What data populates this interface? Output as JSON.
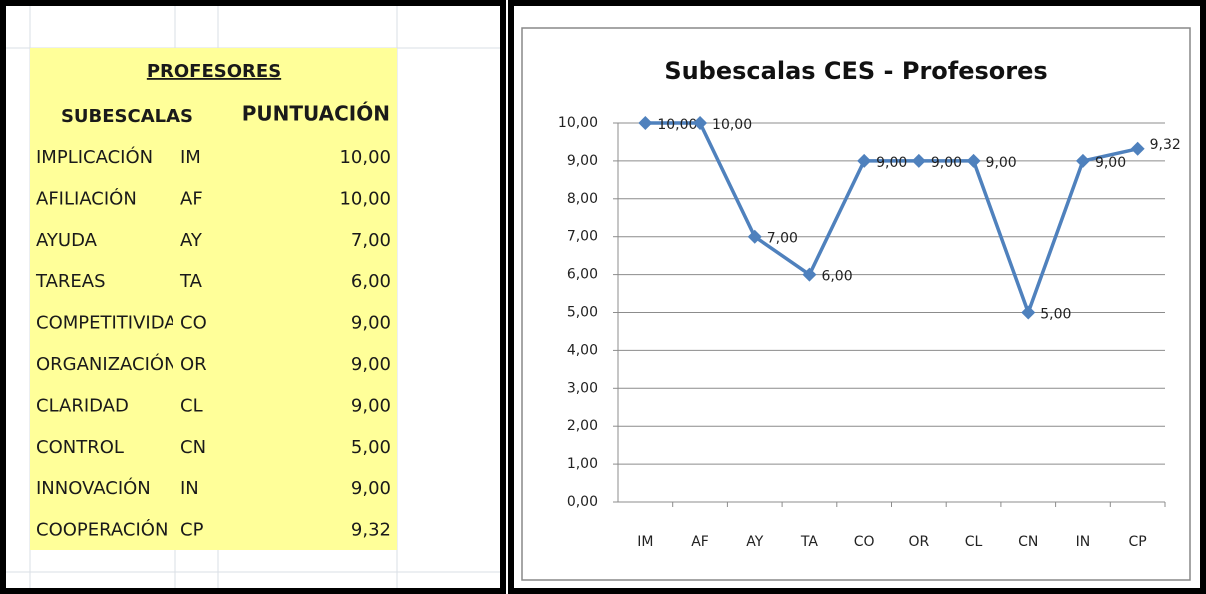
{
  "table": {
    "title": "PROFESORES",
    "header": [
      "SUBESCALAS",
      "PUNTUACIÓN"
    ],
    "rows": [
      [
        "IMPLICACIÓN",
        "IM",
        "10,00"
      ],
      [
        "AFILIACIÓN",
        "AF",
        "10,00"
      ],
      [
        "AYUDA",
        "AY",
        "7,00"
      ],
      [
        "TAREAS",
        "TA",
        "6,00"
      ],
      [
        "COMPETITIVIDAD",
        "CO",
        "9,00"
      ],
      [
        "ORGANIZACIÓN",
        "OR",
        "9,00"
      ],
      [
        "CLARIDAD",
        "CL",
        "9,00"
      ],
      [
        "CONTROL",
        "CN",
        "5,00"
      ],
      [
        "INNOVACIÓN",
        "IN",
        "9,00"
      ],
      [
        "COOPERACIÓN",
        "CP",
        "9,32"
      ]
    ]
  },
  "chart_data": {
    "type": "line",
    "title": "Subescalas CES - Profesores",
    "categories": [
      "IM",
      "AF",
      "AY",
      "TA",
      "CO",
      "OR",
      "CL",
      "CN",
      "IN",
      "CP"
    ],
    "values": [
      10,
      10,
      7,
      6,
      9,
      9,
      9,
      5,
      9,
      9.32
    ],
    "value_labels": [
      "10,00",
      "10,00",
      "7,00",
      "6,00",
      "9,00",
      "9,00",
      "9,00",
      "5,00",
      "9,00",
      "9,32"
    ],
    "color": "#4f81bd",
    "ylim": [
      0,
      10
    ],
    "yticks": [
      {
        "value": 0,
        "label": "0,00"
      },
      {
        "value": 1,
        "label": "1,00"
      },
      {
        "value": 2,
        "label": "2,00"
      },
      {
        "value": 3,
        "label": "3,00"
      },
      {
        "value": 4,
        "label": "4,00"
      },
      {
        "value": 5,
        "label": "5,00"
      },
      {
        "value": 6,
        "label": "6,00"
      },
      {
        "value": 7,
        "label": "7,00"
      },
      {
        "value": 8,
        "label": "8,00"
      },
      {
        "value": 9,
        "label": "9,00"
      },
      {
        "value": 10,
        "label": "10,00"
      }
    ],
    "grid": true
  }
}
